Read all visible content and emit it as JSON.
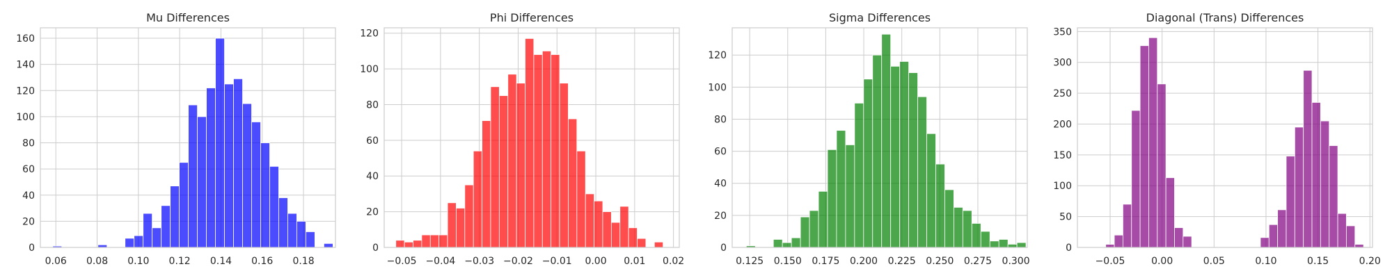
{
  "chart_data": [
    {
      "type": "bar",
      "title": "Mu Differences",
      "color": "#0000ff",
      "xlim": [
        0.0525,
        0.1955
      ],
      "ylim": [
        0,
        168
      ],
      "xticks": [
        0.06,
        0.08,
        0.1,
        0.12,
        0.14,
        0.16,
        0.18
      ],
      "xtick_labels": [
        "0.06",
        "0.08",
        "0.10",
        "0.12",
        "0.14",
        "0.16",
        "0.18"
      ],
      "yticks": [
        0,
        20,
        40,
        60,
        80,
        100,
        120,
        140,
        160
      ],
      "ytick_labels": [
        "0",
        "20",
        "40",
        "60",
        "80",
        "100",
        "120",
        "140",
        "160"
      ],
      "bin_start": 0.0585,
      "bin_width": 0.00438,
      "values": [
        1,
        0,
        0,
        0,
        0,
        2,
        0,
        0,
        7,
        9,
        26,
        15,
        32,
        47,
        65,
        109,
        100,
        122,
        160,
        125,
        129,
        110,
        96,
        80,
        62,
        38,
        26,
        20,
        12,
        0,
        3
      ],
      "xlabel": "",
      "ylabel": ""
    },
    {
      "type": "bar",
      "title": "Phi Differences",
      "color": "#ff0000",
      "xlim": [
        -0.0545,
        0.0215
      ],
      "ylim": [
        0,
        123
      ],
      "xticks": [
        -0.05,
        -0.04,
        -0.03,
        -0.02,
        -0.01,
        0.0,
        0.01,
        0.02
      ],
      "xtick_labels": [
        "−0.05",
        "−0.04",
        "−0.03",
        "−0.02",
        "−0.01",
        "0.00",
        "0.01",
        "0.02"
      ],
      "yticks": [
        0,
        20,
        40,
        60,
        80,
        100,
        120
      ],
      "ytick_labels": [
        "0",
        "20",
        "40",
        "60",
        "80",
        "100",
        "120"
      ],
      "bin_start": -0.0515,
      "bin_width": 0.00222,
      "values": [
        4,
        3,
        4,
        7,
        7,
        7,
        25,
        22,
        35,
        54,
        71,
        90,
        85,
        97,
        92,
        117,
        108,
        110,
        108,
        92,
        72,
        54,
        30,
        26,
        20,
        14,
        23,
        11,
        5,
        0,
        3
      ],
      "xlabel": "",
      "ylabel": ""
    },
    {
      "type": "bar",
      "title": "Sigma Differences",
      "color": "#008000",
      "xlim": [
        0.1135,
        0.3075
      ],
      "ylim": [
        0,
        137
      ],
      "xticks": [
        0.125,
        0.15,
        0.175,
        0.2,
        0.225,
        0.25,
        0.275,
        0.3
      ],
      "xtick_labels": [
        "0.125",
        "0.150",
        "0.175",
        "0.200",
        "0.225",
        "0.250",
        "0.275",
        "0.300"
      ],
      "yticks": [
        0,
        20,
        40,
        60,
        80,
        100,
        120
      ],
      "ytick_labels": [
        "0",
        "20",
        "40",
        "60",
        "80",
        "100",
        "120"
      ],
      "bin_start": 0.1228,
      "bin_width": 0.00593,
      "values": [
        1,
        0,
        0,
        5,
        3,
        6,
        19,
        23,
        35,
        61,
        73,
        64,
        90,
        105,
        120,
        133,
        113,
        116,
        109,
        94,
        71,
        52,
        36,
        25,
        23,
        15,
        10,
        4,
        5,
        2,
        3
      ],
      "xlabel": "",
      "ylabel": ""
    },
    {
      "type": "bar",
      "title": "Diagonal (Trans) Differences",
      "color": "#800080",
      "xlim": [
        -0.0815,
        0.2025
      ],
      "ylim": [
        0,
        356
      ],
      "xticks": [
        -0.05,
        0.0,
        0.05,
        0.1,
        0.15,
        0.2
      ],
      "xtick_labels": [
        "−0.05",
        "0.00",
        "0.05",
        "0.10",
        "0.15",
        "0.20"
      ],
      "yticks": [
        0,
        50,
        100,
        150,
        200,
        250,
        300,
        350
      ],
      "ytick_labels": [
        "0",
        "50",
        "100",
        "150",
        "200",
        "250",
        "300",
        "350"
      ],
      "bin_start": -0.0625,
      "bin_width": 0.00827,
      "values": [
        1,
        5,
        20,
        70,
        222,
        327,
        340,
        265,
        113,
        32,
        18,
        0,
        0,
        0,
        0,
        0,
        0,
        0,
        0,
        16,
        37,
        61,
        148,
        195,
        287,
        235,
        205,
        165,
        55,
        35,
        5
      ],
      "xlabel": "",
      "ylabel": ""
    }
  ]
}
